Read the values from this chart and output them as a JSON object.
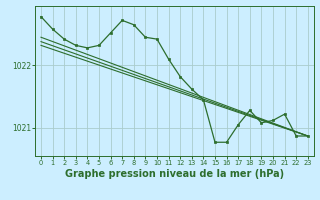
{
  "bg_color": "#cceeff",
  "grid_color": "#aacccc",
  "line_color": "#2d6e2d",
  "marker_color": "#2d6e2d",
  "title": "Graphe pression niveau de la mer (hPa)",
  "title_fontsize": 7,
  "tick_color": "#2d6e2d",
  "xlim": [
    -0.5,
    23.5
  ],
  "ylim": [
    1020.55,
    1022.95
  ],
  "yticks": [
    1021,
    1022
  ],
  "xticks": [
    0,
    1,
    2,
    3,
    4,
    5,
    6,
    7,
    8,
    9,
    10,
    11,
    12,
    13,
    14,
    15,
    16,
    17,
    18,
    19,
    20,
    21,
    22,
    23
  ],
  "ref_line1": {
    "x": [
      0,
      23
    ],
    "y": [
      1022.45,
      1020.87
    ]
  },
  "ref_line2": {
    "x": [
      0,
      23
    ],
    "y": [
      1022.38,
      1020.87
    ]
  },
  "ref_line3": {
    "x": [
      0,
      23
    ],
    "y": [
      1022.32,
      1020.87
    ]
  },
  "main_series": {
    "x": [
      0,
      1,
      2,
      3,
      4,
      5,
      6,
      7,
      8,
      9,
      10,
      11,
      12,
      13,
      14,
      15,
      16,
      17,
      18,
      19,
      20,
      21,
      22,
      23
    ],
    "y": [
      1022.78,
      1022.58,
      1022.42,
      1022.32,
      1022.28,
      1022.32,
      1022.52,
      1022.72,
      1022.65,
      1022.45,
      1022.42,
      1022.1,
      1021.82,
      1021.62,
      1021.45,
      1020.77,
      1020.77,
      1021.05,
      1021.28,
      1021.08,
      1021.12,
      1021.22,
      1020.87,
      1020.87
    ]
  }
}
